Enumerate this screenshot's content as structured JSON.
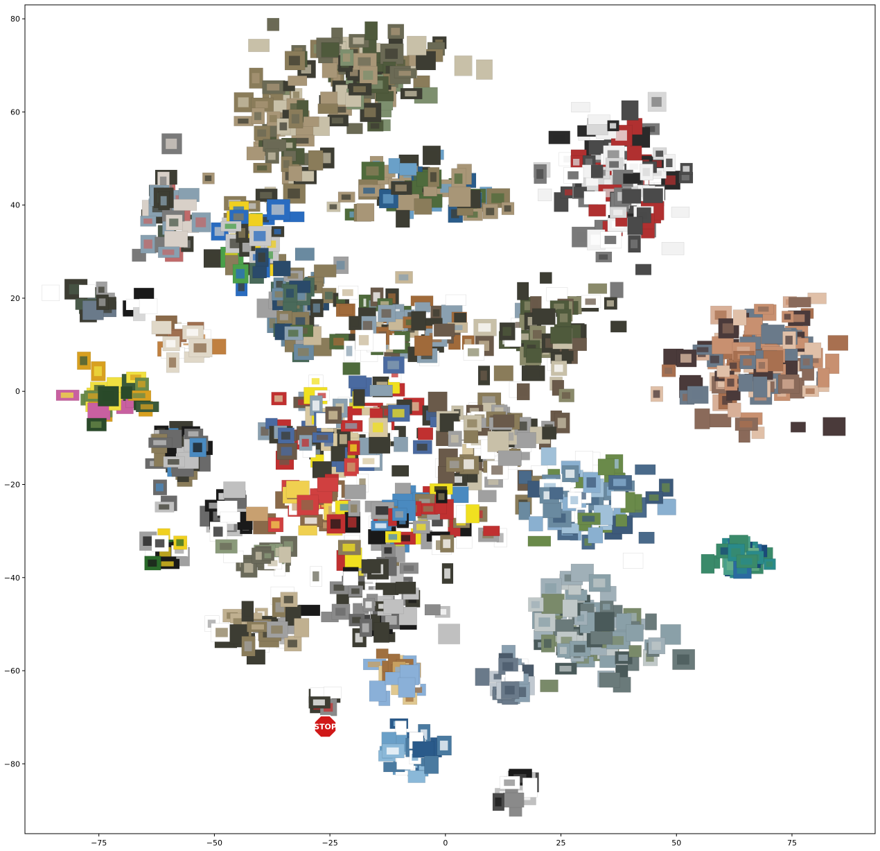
{
  "chart_data": {
    "type": "scatter",
    "title": "",
    "xlabel": "",
    "ylabel": "",
    "xlim": [
      -91,
      93
    ],
    "ylim": [
      -95,
      83
    ],
    "xticks": [
      -75,
      -50,
      -25,
      0,
      25,
      50,
      75
    ],
    "yticks": [
      80,
      60,
      40,
      20,
      0,
      -20,
      -40,
      -60,
      -80
    ],
    "xtick_labels": [
      "−75",
      "−50",
      "−25",
      "0",
      "25",
      "50",
      "75"
    ],
    "ytick_labels": [
      "80",
      "60",
      "40",
      "20",
      "0",
      "−20",
      "−40",
      "−60",
      "−80"
    ],
    "grid": false,
    "legend": "none",
    "marker": "image thumbnails",
    "clusters": [
      {
        "x": -17,
        "y": 68,
        "sx": 16,
        "sy": 8,
        "n": 90,
        "palette": [
          "#6b6a55",
          "#8a7c5a",
          "#4f5a3c",
          "#a89677",
          "#3d3d33",
          "#c8c0a8",
          "#7d8f6e"
        ]
      },
      {
        "x": -35,
        "y": 55,
        "sx": 8,
        "sy": 10,
        "n": 60,
        "palette": [
          "#6b6a55",
          "#8a7c5a",
          "#4f5a3c",
          "#a89677",
          "#3d3d33",
          "#c8c0a8"
        ]
      },
      {
        "x": -5,
        "y": 42,
        "sx": 13,
        "sy": 6,
        "n": 70,
        "palette": [
          "#4f6b3c",
          "#8a7c5a",
          "#6aa0c8",
          "#3d3d33",
          "#a89677",
          "#2a5c8a"
        ]
      },
      {
        "x": -60,
        "y": 38,
        "sx": 5,
        "sy": 8,
        "n": 40,
        "palette": [
          "#7a7a7a",
          "#4a5a4a",
          "#c06a6a",
          "#d8d0c8",
          "#3d3d33",
          "#88a0b0"
        ]
      },
      {
        "x": -42,
        "y": 32,
        "sx": 6,
        "sy": 8,
        "n": 40,
        "palette": [
          "#2a6cc0",
          "#f0d020",
          "#4aa04a",
          "#8a7c5a",
          "#3d3d33",
          "#c8c8c8"
        ]
      },
      {
        "x": 38,
        "y": 45,
        "sx": 10,
        "sy": 12,
        "n": 130,
        "palette": [
          "#ffffff",
          "#f2f2f2",
          "#2a2a2a",
          "#b03030",
          "#7a7a7a",
          "#d8d8d8",
          "#4a4a4a"
        ]
      },
      {
        "x": -33,
        "y": 18,
        "sx": 7,
        "sy": 8,
        "n": 55,
        "palette": [
          "#4a6a5a",
          "#6a8aa0",
          "#8a7c5a",
          "#3d3d33",
          "#a0a0a0",
          "#2a4a6a"
        ]
      },
      {
        "x": -11,
        "y": 14,
        "sx": 14,
        "sy": 7,
        "n": 80,
        "palette": [
          "#6a5a4a",
          "#3d3d33",
          "#8aa0b0",
          "#c8b898",
          "#4f6b3c",
          "#a06a3a",
          "#ffffff"
        ]
      },
      {
        "x": 22,
        "y": 12,
        "sx": 10,
        "sy": 10,
        "n": 60,
        "palette": [
          "#3d3d33",
          "#6a5a4a",
          "#c8c0a8",
          "#8a8a6a",
          "#ffffff",
          "#4f5a3c"
        ]
      },
      {
        "x": -76,
        "y": 19,
        "sx": 5,
        "sy": 3,
        "n": 18,
        "palette": [
          "#6a7a8a",
          "#3d3d33",
          "#ffffff",
          "#a0a0a0",
          "#4a5a4a"
        ]
      },
      {
        "x": -68,
        "y": 18,
        "sx": 3,
        "sy": 2,
        "n": 6,
        "palette": [
          "#ffffff",
          "#1a1a1a",
          "#d8d8d8"
        ]
      },
      {
        "x": -56,
        "y": 10,
        "sx": 6,
        "sy": 4,
        "n": 22,
        "palette": [
          "#a07050",
          "#ffffff",
          "#c08040",
          "#8a6a4a",
          "#e0d8c8"
        ]
      },
      {
        "x": -72,
        "y": -2,
        "sx": 7,
        "sy": 5,
        "n": 30,
        "palette": [
          "#2a4a2a",
          "#d8a020",
          "#c860a0",
          "#3a5a3a",
          "#f0e040",
          "#6a8a4a"
        ]
      },
      {
        "x": -20,
        "y": -8,
        "sx": 15,
        "sy": 8,
        "n": 110,
        "palette": [
          "#f0e020",
          "#ffffff",
          "#c03030",
          "#3d3d33",
          "#8aa0b0",
          "#d8c8a0",
          "#4a6aa0",
          "#6a5a4a"
        ]
      },
      {
        "x": 12,
        "y": -10,
        "sx": 12,
        "sy": 9,
        "n": 80,
        "palette": [
          "#3d3d33",
          "#c8c0a8",
          "#6a5a4a",
          "#ffffff",
          "#8a7c5a",
          "#a0a0a0"
        ]
      },
      {
        "x": -57,
        "y": -14,
        "sx": 6,
        "sy": 6,
        "n": 35,
        "palette": [
          "#1a1a1a",
          "#8a7c5a",
          "#4a8ac0",
          "#c0c0c0",
          "#3d3d33",
          "#6a6a6a"
        ]
      },
      {
        "x": -47,
        "y": -27,
        "sx": 5,
        "sy": 4,
        "n": 18,
        "palette": [
          "#ffffff",
          "#1a1a1a",
          "#6a6a6a",
          "#c0c0c0"
        ]
      },
      {
        "x": -30,
        "y": -25,
        "sx": 8,
        "sy": 5,
        "n": 35,
        "palette": [
          "#c8a070",
          "#d04040",
          "#f0d050",
          "#8a6a4a",
          "#ffffff"
        ]
      },
      {
        "x": -6,
        "y": -28,
        "sx": 13,
        "sy": 7,
        "n": 80,
        "palette": [
          "#ffffff",
          "#1a1a1a",
          "#c03030",
          "#f0e020",
          "#4a8ac0",
          "#8a7c5a",
          "#a0a0a0"
        ]
      },
      {
        "x": -62,
        "y": -35,
        "sx": 4,
        "sy": 3,
        "n": 14,
        "palette": [
          "#f0d020",
          "#2a6a2a",
          "#ffffff",
          "#1a1a1a",
          "#a0a0a0"
        ]
      },
      {
        "x": -38,
        "y": -36,
        "sx": 7,
        "sy": 3,
        "n": 22,
        "palette": [
          "#8a9a7a",
          "#c8c0a8",
          "#ffffff",
          "#6a6a5a"
        ]
      },
      {
        "x": -15,
        "y": -45,
        "sx": 11,
        "sy": 7,
        "n": 60,
        "palette": [
          "#1a1a1a",
          "#6a6a6a",
          "#ffffff",
          "#c0c0c0",
          "#3d3d33",
          "#8a8a8a"
        ]
      },
      {
        "x": -40,
        "y": -52,
        "sx": 7,
        "sy": 5,
        "n": 35,
        "palette": [
          "#c0b090",
          "#3d3d33",
          "#ffffff",
          "#8a7c5a",
          "#a0a0a0"
        ]
      },
      {
        "x": 32,
        "y": -24,
        "sx": 11,
        "sy": 8,
        "n": 80,
        "palette": [
          "#8ab0d0",
          "#6a8aa0",
          "#4a6a8a",
          "#ffffff",
          "#a0c0d8",
          "#3d5a7a",
          "#6a8a4a"
        ]
      },
      {
        "x": 32,
        "y": -52,
        "sx": 12,
        "sy": 8,
        "n": 100,
        "palette": [
          "#8aa0a8",
          "#6a7a7a",
          "#a0b0b8",
          "#4a5a5a",
          "#c0c8c8",
          "#7a8a6a"
        ]
      },
      {
        "x": 65,
        "y": -35,
        "sx": 5,
        "sy": 3,
        "n": 30,
        "palette": [
          "#2a6aa0",
          "#3a8a6a",
          "#4aa08a",
          "#1a4a7a",
          "#6ab08a",
          "#2a8a8a"
        ]
      },
      {
        "x": 68,
        "y": 5,
        "sx": 14,
        "sy": 10,
        "n": 130,
        "palette": [
          "#c89070",
          "#a87050",
          "#d8b098",
          "#8a6a5a",
          "#4a3a3a",
          "#e0c0a8",
          "#6a7a8a"
        ]
      },
      {
        "x": 14,
        "y": -62,
        "sx": 4,
        "sy": 4,
        "n": 25,
        "palette": [
          "#8aa0b0",
          "#6a7a8a",
          "#ffffff",
          "#4a5a6a",
          "#c0c8d0"
        ]
      },
      {
        "x": -10,
        "y": -62,
        "sx": 5,
        "sy": 5,
        "n": 25,
        "palette": [
          "#c8a060",
          "#8ab0d8",
          "#ffffff",
          "#a07040",
          "#e0c890"
        ]
      },
      {
        "x": -7,
        "y": -77,
        "sx": 5,
        "sy": 5,
        "n": 35,
        "palette": [
          "#6aa0c8",
          "#ffffff",
          "#4a7aa0",
          "#8ab8d8",
          "#2a5a8a"
        ]
      },
      {
        "x": 15,
        "y": -85,
        "sx": 3,
        "sy": 3,
        "n": 18,
        "palette": [
          "#c0c0c0",
          "#1a1a1a",
          "#ffffff",
          "#4a4a4a",
          "#8a8a8a"
        ]
      },
      {
        "x": -26,
        "y": -67,
        "sx": 2,
        "sy": 2,
        "n": 8,
        "palette": [
          "#c03030",
          "#ffffff",
          "#3d3d33",
          "#8a8a8a"
        ]
      }
    ],
    "annotations": [
      {
        "text": "STOP",
        "x": -26,
        "y": -72
      }
    ]
  }
}
